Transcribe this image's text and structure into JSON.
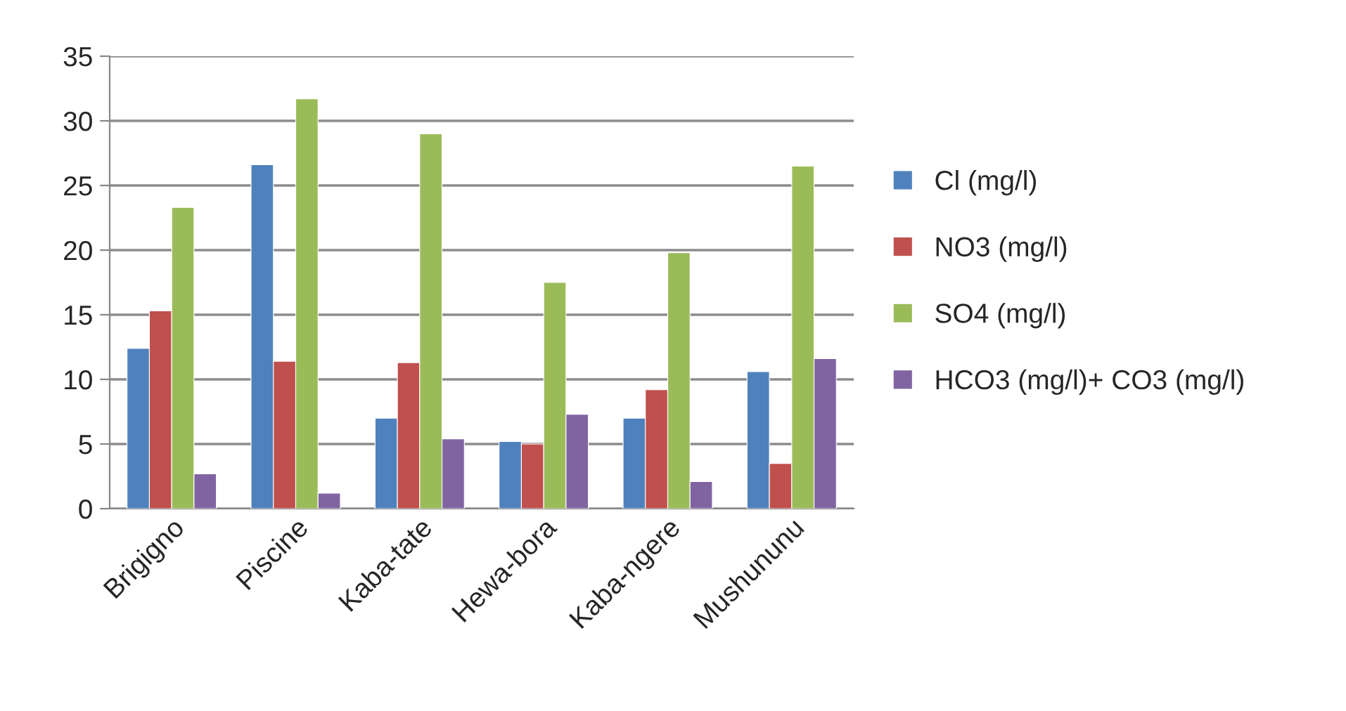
{
  "chart_data": {
    "type": "bar",
    "categories": [
      "Brigigno",
      "Piscine",
      "Kaba-tate",
      "Hewa-bora",
      "Kaba-ngere",
      "Mushununu"
    ],
    "series": [
      {
        "name": "Cl (mg/l)",
        "color": "#4f81bd",
        "values": [
          12.4,
          26.6,
          7.0,
          5.2,
          7.0,
          10.6
        ]
      },
      {
        "name": "NO3 (mg/l)",
        "color": "#c0504d",
        "values": [
          15.3,
          11.4,
          11.3,
          5.0,
          9.2,
          3.5
        ]
      },
      {
        "name": "SO4 (mg/l)",
        "color": "#9bbb59",
        "values": [
          23.3,
          31.7,
          29.0,
          17.5,
          19.8,
          26.5
        ]
      },
      {
        "name": "HCO3 (mg/l)+ CO3 (mg/l)",
        "color": "#8064a2",
        "values": [
          2.7,
          1.2,
          5.4,
          7.3,
          2.1,
          11.6
        ]
      }
    ],
    "ylim": [
      0,
      35
    ],
    "yticks": [
      0,
      5,
      10,
      15,
      20,
      25,
      30,
      35
    ],
    "grid": "y",
    "legend": "right"
  }
}
